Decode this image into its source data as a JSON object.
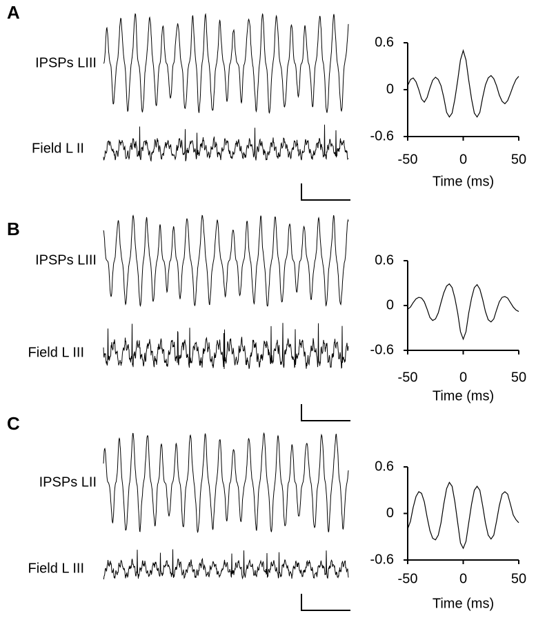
{
  "chart_data": [
    {
      "type": "line",
      "panel_label": "A",
      "trace_labels": [
        "IPSPs LIII",
        "Field L II"
      ],
      "xlabel": "Time (ms)",
      "x": [
        -50,
        -47.5,
        -45,
        -42.5,
        -40,
        -37.5,
        -35,
        -32.5,
        -30,
        -27.5,
        -25,
        -22.5,
        -20,
        -17.5,
        -15,
        -12.5,
        -10,
        -7.5,
        -5,
        -2.5,
        0,
        2.5,
        5,
        7.5,
        10,
        12.5,
        15,
        17.5,
        20,
        22.5,
        25,
        27.5,
        30,
        32.5,
        35,
        37.5,
        40,
        42.5,
        45,
        47.5,
        50
      ],
      "series": [
        {
          "color": "#000000",
          "values": [
            0.05,
            0.13,
            0.15,
            0.1,
            0.0,
            -0.12,
            -0.16,
            -0.1,
            0.02,
            0.12,
            0.16,
            0.13,
            0.05,
            -0.1,
            -0.29,
            -0.35,
            -0.3,
            -0.12,
            0.12,
            0.38,
            0.5,
            0.38,
            0.12,
            -0.12,
            -0.3,
            -0.35,
            -0.29,
            -0.1,
            0.06,
            0.15,
            0.18,
            0.14,
            0.05,
            -0.07,
            -0.15,
            -0.18,
            -0.14,
            -0.05,
            0.05,
            0.13,
            0.17
          ]
        }
      ],
      "xlim": [
        -50,
        50
      ],
      "ylim": [
        -0.6,
        0.6
      ],
      "xticks": [
        -50,
        0,
        50
      ],
      "yticks": [
        0.6,
        0,
        -0.6
      ]
    },
    {
      "type": "line",
      "panel_label": "B",
      "trace_labels": [
        "IPSPs LIII",
        "Field L III"
      ],
      "xlabel": "Time (ms)",
      "x": [
        -50,
        -47.5,
        -45,
        -42.5,
        -40,
        -37.5,
        -35,
        -32.5,
        -30,
        -27.5,
        -25,
        -22.5,
        -20,
        -17.5,
        -15,
        -12.5,
        -10,
        -7.5,
        -5,
        -2.5,
        0,
        2.5,
        5,
        7.5,
        10,
        12.5,
        15,
        17.5,
        20,
        22.5,
        25,
        27.5,
        30,
        32.5,
        35,
        37.5,
        40,
        42.5,
        45,
        47.5,
        50
      ],
      "series": [
        {
          "color": "#000000",
          "values": [
            -0.05,
            -0.02,
            0.04,
            0.09,
            0.11,
            0.1,
            0.05,
            -0.05,
            -0.16,
            -0.2,
            -0.18,
            -0.1,
            0.04,
            0.17,
            0.26,
            0.29,
            0.24,
            0.1,
            -0.1,
            -0.35,
            -0.45,
            -0.35,
            -0.1,
            0.1,
            0.24,
            0.28,
            0.22,
            0.08,
            -0.08,
            -0.19,
            -0.22,
            -0.18,
            -0.06,
            0.05,
            0.11,
            0.12,
            0.1,
            0.04,
            -0.02,
            -0.06,
            -0.08
          ]
        }
      ],
      "xlim": [
        -50,
        50
      ],
      "ylim": [
        -0.6,
        0.6
      ],
      "xticks": [
        -50,
        0,
        50
      ],
      "yticks": [
        0.6,
        0,
        -0.6
      ]
    },
    {
      "type": "line",
      "panel_label": "C",
      "trace_labels": [
        "IPSPs LII",
        "Field L III"
      ],
      "xlabel": "Time (ms)",
      "x": [
        -50,
        -47.5,
        -45,
        -42.5,
        -40,
        -37.5,
        -35,
        -32.5,
        -30,
        -27.5,
        -25,
        -22.5,
        -20,
        -17.5,
        -15,
        -12.5,
        -10,
        -7.5,
        -5,
        -2.5,
        0,
        2.5,
        5,
        7.5,
        10,
        12.5,
        15,
        17.5,
        20,
        22.5,
        25,
        27.5,
        30,
        32.5,
        35,
        37.5,
        40,
        42.5,
        45,
        47.5,
        50
      ],
      "series": [
        {
          "color": "#000000",
          "values": [
            -0.2,
            -0.1,
            0.08,
            0.22,
            0.28,
            0.26,
            0.15,
            -0.05,
            -0.22,
            -0.32,
            -0.34,
            -0.28,
            -0.12,
            0.12,
            0.32,
            0.4,
            0.35,
            0.15,
            -0.12,
            -0.38,
            -0.45,
            -0.36,
            -0.12,
            0.12,
            0.3,
            0.35,
            0.3,
            0.1,
            -0.12,
            -0.28,
            -0.33,
            -0.28,
            -0.1,
            0.1,
            0.25,
            0.28,
            0.25,
            0.12,
            -0.02,
            -0.08,
            -0.12
          ]
        }
      ],
      "xlim": [
        -50,
        50
      ],
      "ylim": [
        -0.6,
        0.6
      ],
      "xticks": [
        -50,
        0,
        50
      ],
      "yticks": [
        0.6,
        0,
        -0.6
      ]
    }
  ]
}
